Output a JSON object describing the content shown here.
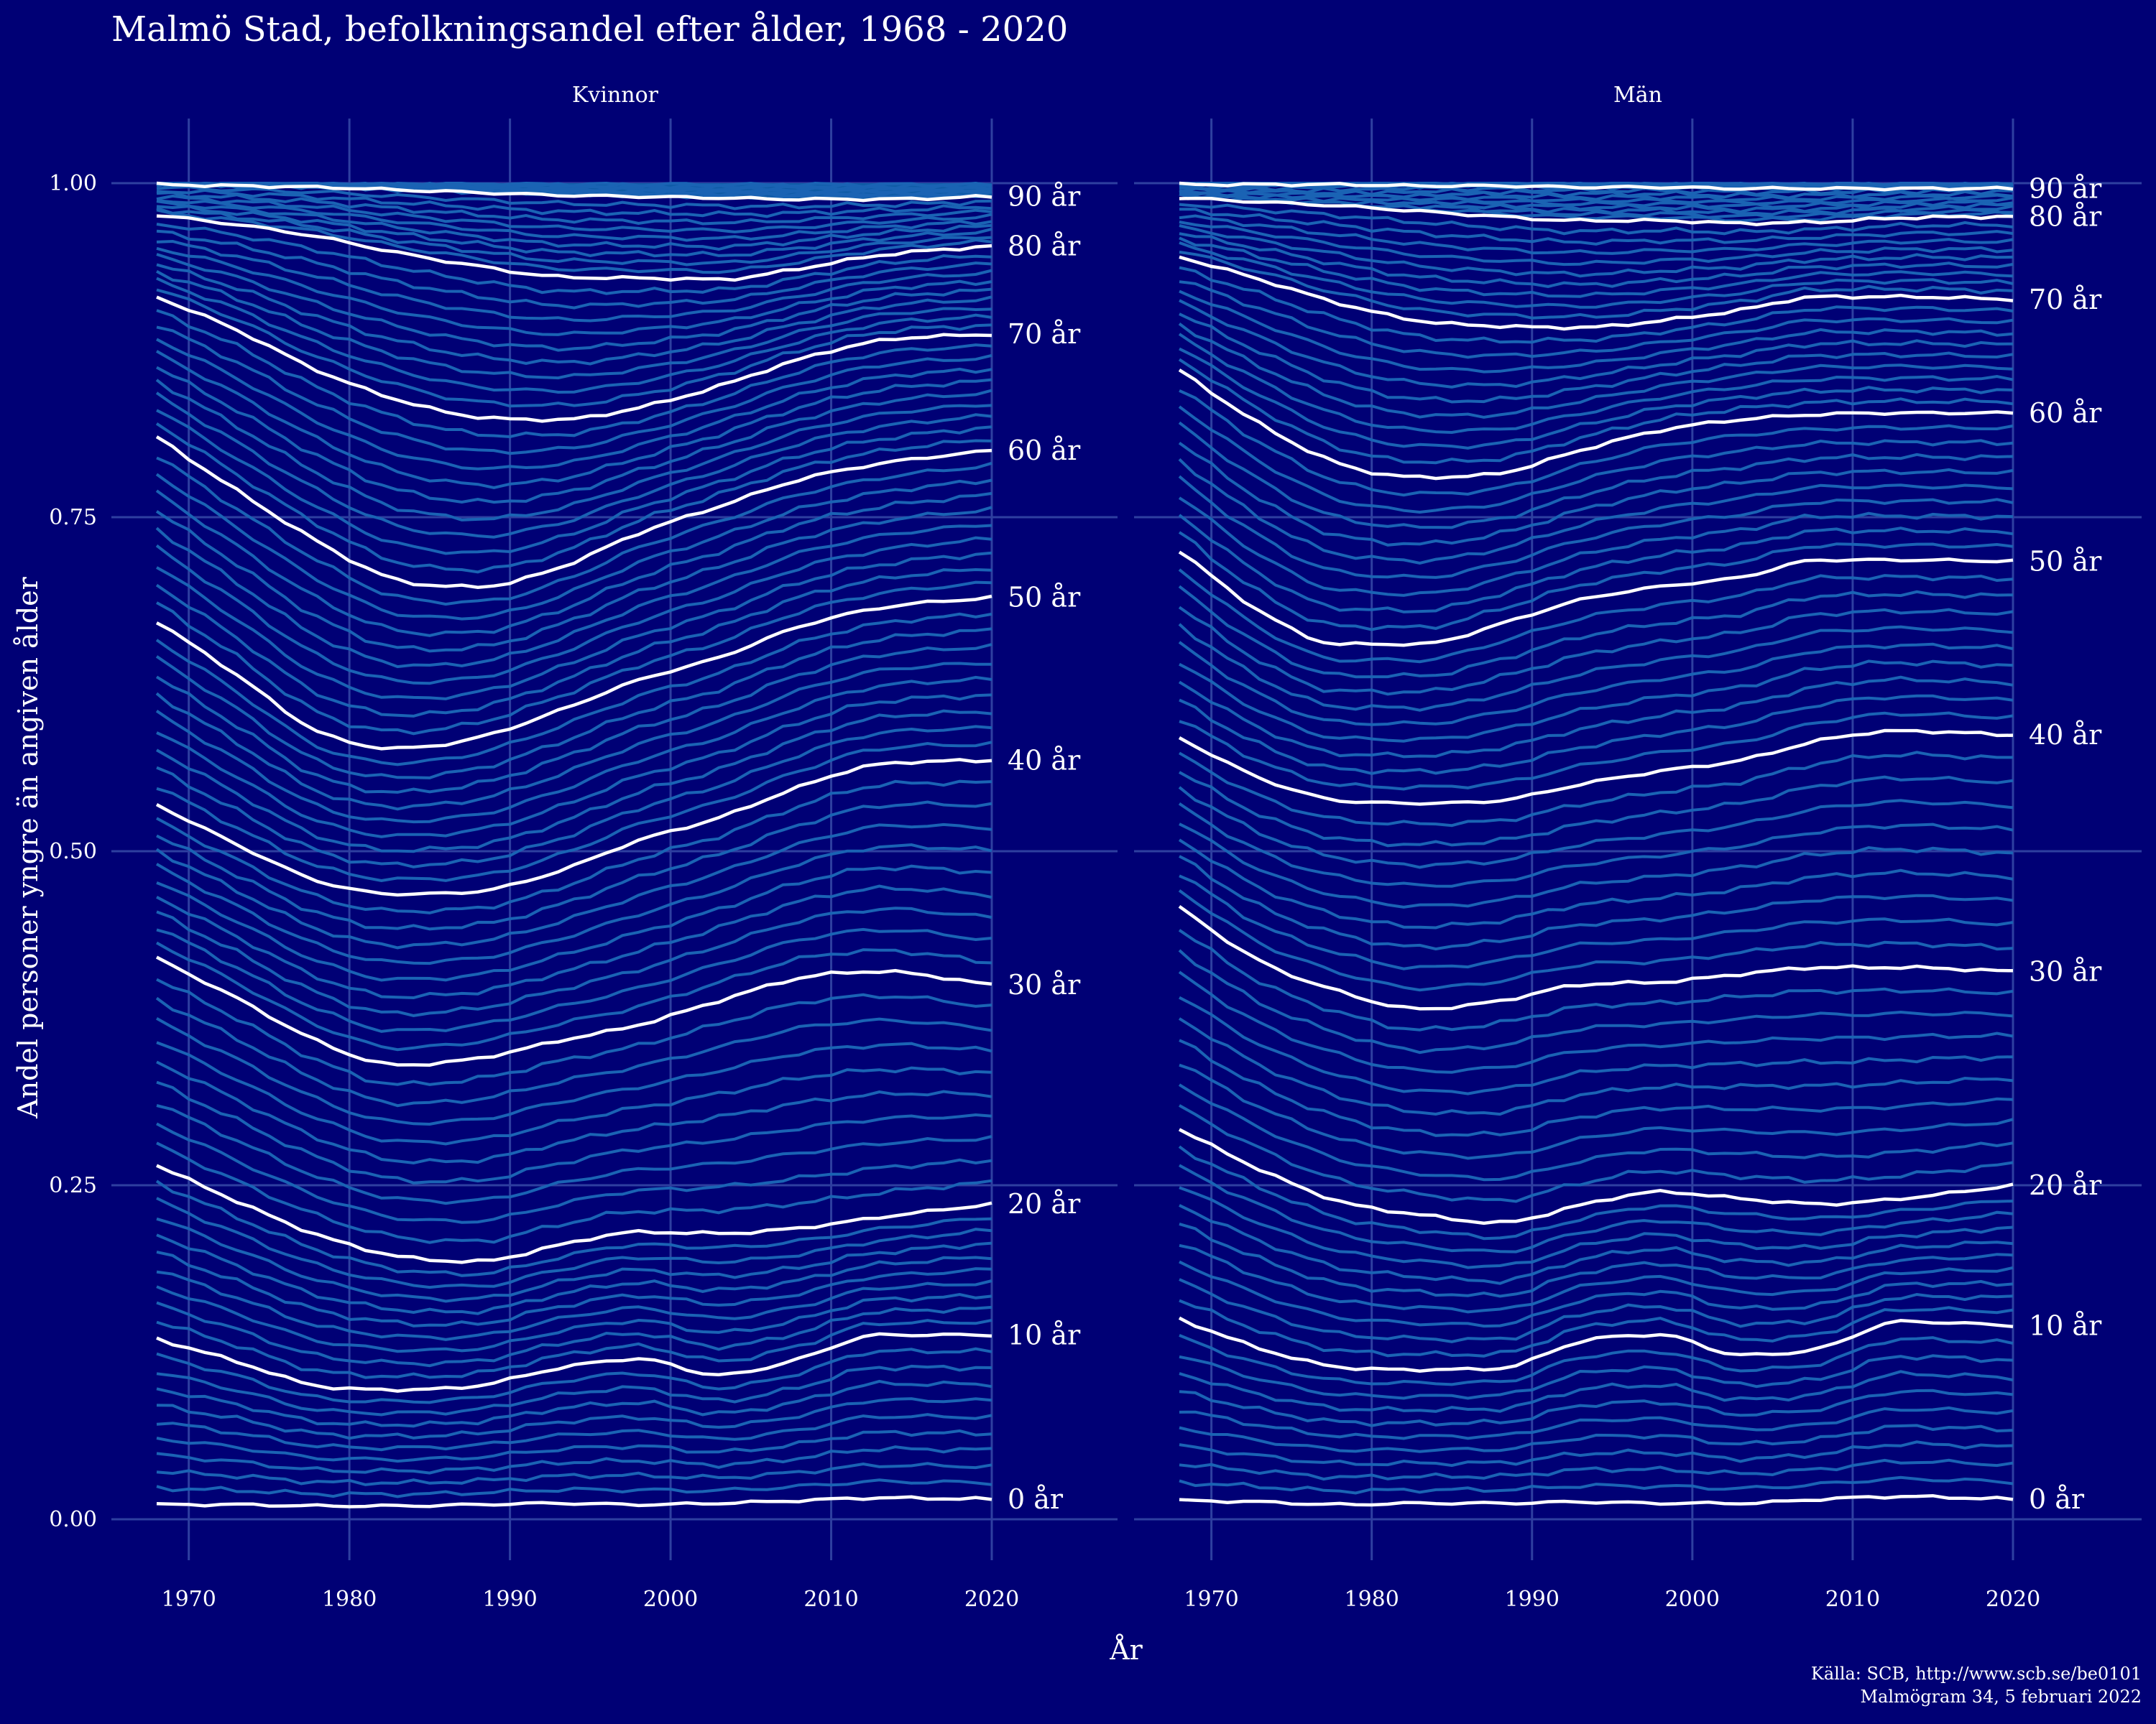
{
  "chart_data": {
    "type": "line",
    "title": "Malmö Stad, befolkningsandel efter ålder, 1968 - 2020",
    "xlabel": "År",
    "ylabel": "Andel personer yngre än angiven ålder",
    "xlim": [
      1968,
      2020
    ],
    "ylim": [
      0,
      1
    ],
    "x_ticks": [
      "1970",
      "1980",
      "1990",
      "2000",
      "2010",
      "2020"
    ],
    "y_ticks": [
      "0.00",
      "0.25",
      "0.50",
      "0.75",
      "1.00"
    ],
    "grid": true,
    "x": [
      1968,
      1973,
      1978,
      1983,
      1988,
      1993,
      1998,
      2003,
      2008,
      2013,
      2020
    ],
    "panels": [
      {
        "name": "Kvinnor",
        "series": [
          {
            "name": "0 år",
            "values": [
              0.011,
              0.011,
              0.01,
              0.01,
              0.011,
              0.012,
              0.011,
              0.012,
              0.014,
              0.016,
              0.015
            ]
          },
          {
            "name": "10 år",
            "values": [
              0.135,
              0.118,
              0.1,
              0.097,
              0.1,
              0.113,
              0.12,
              0.108,
              0.12,
              0.138,
              0.138
            ]
          },
          {
            "name": "20 år",
            "values": [
              0.265,
              0.238,
              0.213,
              0.197,
              0.193,
              0.205,
              0.215,
              0.214,
              0.218,
              0.226,
              0.236
            ]
          },
          {
            "name": "30 år",
            "values": [
              0.42,
              0.39,
              0.358,
              0.34,
              0.345,
              0.358,
              0.37,
              0.388,
              0.405,
              0.41,
              0.4
            ]
          },
          {
            "name": "40 år",
            "values": [
              0.535,
              0.505,
              0.478,
              0.468,
              0.47,
              0.485,
              0.508,
              0.525,
              0.548,
              0.565,
              0.568
            ]
          },
          {
            "name": "50 år",
            "values": [
              0.672,
              0.632,
              0.59,
              0.577,
              0.585,
              0.605,
              0.628,
              0.645,
              0.668,
              0.682,
              0.69
            ]
          },
          {
            "name": "60 år",
            "values": [
              0.81,
              0.77,
              0.732,
              0.703,
              0.698,
              0.712,
              0.738,
              0.758,
              0.778,
              0.79,
              0.8
            ]
          },
          {
            "name": "70 år",
            "values": [
              0.915,
              0.89,
              0.86,
              0.838,
              0.825,
              0.823,
              0.832,
              0.848,
              0.868,
              0.882,
              0.887
            ]
          },
          {
            "name": "80 år",
            "values": [
              0.976,
              0.969,
              0.96,
              0.948,
              0.938,
              0.93,
              0.929,
              0.928,
              0.936,
              0.946,
              0.953
            ]
          },
          {
            "name": "90 år",
            "values": [
              0.999,
              0.998,
              0.997,
              0.995,
              0.993,
              0.991,
              0.99,
              0.989,
              0.988,
              0.988,
              0.99
            ]
          }
        ]
      },
      {
        "name": "Män",
        "series": [
          {
            "name": "0 år",
            "values": [
              0.014,
              0.013,
              0.011,
              0.012,
              0.012,
              0.013,
              0.012,
              0.012,
              0.015,
              0.017,
              0.015
            ]
          },
          {
            "name": "10 år",
            "values": [
              0.15,
              0.128,
              0.114,
              0.112,
              0.113,
              0.133,
              0.138,
              0.123,
              0.128,
              0.148,
              0.145
            ]
          },
          {
            "name": "20 år",
            "values": [
              0.292,
              0.262,
              0.238,
              0.228,
              0.222,
              0.235,
              0.245,
              0.24,
              0.236,
              0.24,
              0.25
            ]
          },
          {
            "name": "30 år",
            "values": [
              0.458,
              0.418,
              0.395,
              0.382,
              0.388,
              0.4,
              0.402,
              0.408,
              0.413,
              0.413,
              0.41
            ]
          },
          {
            "name": "40 år",
            "values": [
              0.585,
              0.555,
              0.538,
              0.536,
              0.538,
              0.55,
              0.56,
              0.568,
              0.583,
              0.59,
              0.587
            ]
          },
          {
            "name": "50 år",
            "values": [
              0.725,
              0.68,
              0.655,
              0.655,
              0.67,
              0.688,
              0.698,
              0.705,
              0.718,
              0.718,
              0.717
            ]
          },
          {
            "name": "60 år",
            "values": [
              0.86,
              0.82,
              0.79,
              0.78,
              0.783,
              0.8,
              0.815,
              0.823,
              0.827,
              0.828,
              0.828
            ]
          },
          {
            "name": "70 år",
            "values": [
              0.945,
              0.928,
              0.91,
              0.897,
              0.893,
              0.892,
              0.897,
              0.905,
              0.915,
              0.915,
              0.913
            ]
          },
          {
            "name": "80 år",
            "values": [
              0.989,
              0.986,
              0.983,
              0.979,
              0.975,
              0.972,
              0.972,
              0.97,
              0.971,
              0.974,
              0.975
            ]
          },
          {
            "name": "90 år",
            "values": [
              0.999,
              0.999,
              0.999,
              0.998,
              0.998,
              0.997,
              0.997,
              0.996,
              0.996,
              0.996,
              0.996
            ]
          }
        ]
      }
    ]
  },
  "colors": {
    "background": "#000075",
    "grid": "#2e3fa0",
    "minor_lines": "#1a63b4",
    "highlight_lines": "#ffffff"
  },
  "caption": {
    "line1": "Källa: SCB, http://www.scb.se/be0101",
    "line2": "Malmögram 34, 5 februari 2022"
  }
}
